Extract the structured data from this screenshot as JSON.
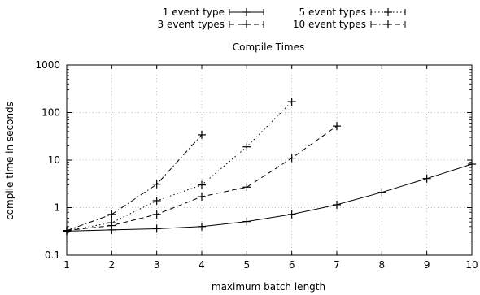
{
  "chart_data": {
    "type": "line",
    "title": "Compile Times",
    "xlabel": "maximum batch length",
    "ylabel": "compile time in seconds",
    "xlim": [
      1,
      10
    ],
    "ylim": [
      0.1,
      1000
    ],
    "yscale": "log",
    "grid": true,
    "legend_position": "top",
    "x_ticks": [
      "1",
      "2",
      "3",
      "4",
      "5",
      "6",
      "7",
      "8",
      "9",
      "10"
    ],
    "y_ticks": [
      "0.1",
      "1",
      "10",
      "100",
      "1000"
    ],
    "series": [
      {
        "name": "1 event type",
        "dash": "solid",
        "x": [
          1,
          2,
          3,
          4,
          5,
          6,
          7,
          8,
          9,
          10
        ],
        "values": [
          0.32,
          0.34,
          0.36,
          0.4,
          0.51,
          0.72,
          1.15,
          2.1,
          4.1,
          8.2
        ]
      },
      {
        "name": "3 event types",
        "dash": "dashed",
        "x": [
          1,
          2,
          3,
          4,
          5,
          6,
          7
        ],
        "values": [
          0.33,
          0.42,
          0.72,
          1.7,
          2.7,
          11,
          52
        ]
      },
      {
        "name": "5 event types",
        "dash": "dotted",
        "x": [
          1,
          2,
          3,
          4,
          5,
          6
        ],
        "values": [
          0.33,
          0.48,
          1.4,
          3.0,
          19,
          170
        ]
      },
      {
        "name": "10 event types",
        "dash": "dashdot",
        "x": [
          1,
          2,
          3,
          4
        ],
        "values": [
          0.33,
          0.72,
          3.1,
          34
        ]
      }
    ]
  }
}
